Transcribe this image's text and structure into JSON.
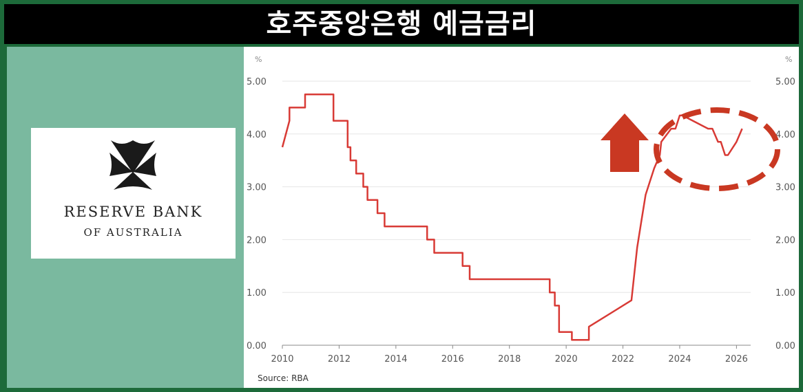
{
  "header": {
    "title": "호주중앙은행 예금금리"
  },
  "logo": {
    "line1": "RESERVE BANK",
    "line2": "OF AUSTRALIA"
  },
  "colors": {
    "line": "#d83a35",
    "annotation": "#c93822",
    "panel": "#7ab99f",
    "frame": "#1d6a3a"
  },
  "annotations": {
    "arrow_icon": "up-arrow-icon",
    "highlight": "dashed-circle"
  },
  "chart_data": {
    "type": "line",
    "title": "",
    "ylabel_left": "%",
    "ylabel_right": "%",
    "source": "Source: RBA",
    "xlim": [
      2010,
      2026.5
    ],
    "ylim": [
      0,
      5
    ],
    "x_ticks": [
      "2010",
      "2012",
      "2014",
      "2016",
      "2018",
      "2020",
      "2022",
      "2024",
      "2026"
    ],
    "y_ticks": [
      "0.00",
      "1.00",
      "2.00",
      "3.00",
      "4.00",
      "5.00"
    ],
    "grid": true,
    "series": [
      {
        "x": [
          2010.0,
          2010.25,
          2010.25,
          2010.8,
          2010.8,
          2011.8,
          2011.8,
          2012.3,
          2012.3,
          2012.4,
          2012.4,
          2012.6,
          2012.6,
          2012.85,
          2012.85,
          2013.0,
          2013.0,
          2013.35,
          2013.35,
          2013.6,
          2013.6,
          2015.1,
          2015.1,
          2015.35,
          2015.35,
          2016.35,
          2016.35,
          2016.6,
          2016.6,
          2019.42,
          2019.42,
          2019.6,
          2019.6,
          2019.75,
          2019.75,
          2020.2,
          2020.2,
          2020.8,
          2020.8,
          2022.3,
          2022.5,
          2022.65,
          2022.8,
          2022.95,
          2023.1,
          2023.3,
          2023.35,
          2023.7,
          2023.85,
          2024.0,
          2024.1,
          2025.0,
          2025.15,
          2025.35,
          2025.45,
          2025.6,
          2025.7,
          2026.0,
          2026.2
        ],
        "values": [
          3.75,
          4.25,
          4.5,
          4.5,
          4.75,
          4.75,
          4.25,
          4.25,
          3.75,
          3.75,
          3.5,
          3.5,
          3.25,
          3.25,
          3.0,
          3.0,
          2.75,
          2.75,
          2.5,
          2.5,
          2.25,
          2.25,
          2.0,
          2.0,
          1.75,
          1.75,
          1.5,
          1.5,
          1.25,
          1.25,
          1.0,
          1.0,
          0.75,
          0.75,
          0.25,
          0.25,
          0.1,
          0.1,
          0.35,
          0.85,
          1.85,
          2.35,
          2.85,
          3.1,
          3.35,
          3.6,
          3.85,
          4.1,
          4.1,
          4.35,
          4.35,
          4.1,
          4.1,
          3.85,
          3.85,
          3.6,
          3.6,
          3.85,
          4.1
        ]
      }
    ]
  }
}
